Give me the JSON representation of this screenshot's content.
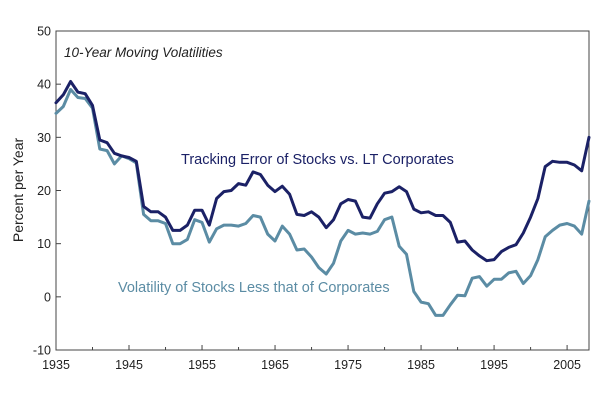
{
  "chart_data": {
    "type": "line",
    "title": "10-Year Moving Volatilities",
    "xlabel": "",
    "ylabel": "Percent per Year",
    "xlim": [
      1935,
      2008
    ],
    "ylim": [
      -10,
      50
    ],
    "grid": false,
    "x_ticks": [
      1935,
      1945,
      1955,
      1965,
      1975,
      1985,
      1995,
      2005
    ],
    "y_ticks": [
      -10,
      0,
      10,
      20,
      30,
      40,
      50
    ],
    "x": [
      1935,
      1936,
      1937,
      1938,
      1939,
      1940,
      1941,
      1942,
      1943,
      1944,
      1945,
      1946,
      1947,
      1948,
      1949,
      1950,
      1951,
      1952,
      1953,
      1954,
      1955,
      1956,
      1957,
      1958,
      1959,
      1960,
      1961,
      1962,
      1963,
      1964,
      1965,
      1966,
      1967,
      1968,
      1969,
      1970,
      1971,
      1972,
      1973,
      1974,
      1975,
      1976,
      1977,
      1978,
      1979,
      1980,
      1981,
      1982,
      1983,
      1984,
      1985,
      1986,
      1987,
      1988,
      1989,
      1990,
      1991,
      1992,
      1993,
      1994,
      1995,
      1996,
      1997,
      1998,
      1999,
      2000,
      2001,
      2002,
      2003,
      2004,
      2005,
      2006,
      2007,
      2008
    ],
    "series": [
      {
        "name": "Tracking Error of Stocks vs. LT Corporates",
        "color": "#1b2166",
        "values": [
          36.5,
          38.0,
          40.5,
          38.5,
          38.2,
          36.0,
          29.5,
          29.0,
          27.0,
          26.5,
          26.2,
          25.5,
          17.0,
          16.0,
          16.0,
          15.0,
          12.5,
          12.5,
          13.5,
          16.3,
          16.3,
          13.5,
          18.5,
          19.8,
          20.0,
          21.3,
          21.0,
          23.5,
          23.0,
          21.0,
          19.8,
          20.8,
          19.3,
          15.5,
          15.3,
          16.0,
          15.0,
          13.0,
          14.5,
          17.5,
          18.3,
          18.0,
          15.0,
          14.8,
          17.5,
          19.5,
          19.8,
          20.7,
          19.8,
          16.5,
          15.8,
          16.0,
          15.3,
          15.3,
          14.0,
          10.3,
          10.5,
          8.8,
          7.7,
          6.8,
          7.0,
          8.5,
          9.3,
          9.8,
          12.0,
          15.0,
          18.5,
          24.5,
          25.5,
          25.3,
          25.3,
          24.8,
          23.7,
          30.0
        ]
      },
      {
        "name": "Volatility of Stocks Less that of Corporates",
        "color": "#5b8ca4",
        "values": [
          34.5,
          35.8,
          39.0,
          37.5,
          37.3,
          35.5,
          27.8,
          27.5,
          25.0,
          26.5,
          26.0,
          25.2,
          15.5,
          14.3,
          14.3,
          13.8,
          10.0,
          10.0,
          10.8,
          14.5,
          14.0,
          10.3,
          12.8,
          13.5,
          13.5,
          13.3,
          13.8,
          15.3,
          15.0,
          11.8,
          10.5,
          13.3,
          11.8,
          8.8,
          9.0,
          7.5,
          5.5,
          4.3,
          6.3,
          10.5,
          12.5,
          11.8,
          12.0,
          11.8,
          12.3,
          14.5,
          15.0,
          9.5,
          8.0,
          1.0,
          -1.0,
          -1.3,
          -3.5,
          -3.5,
          -1.5,
          0.3,
          0.2,
          3.5,
          3.8,
          2.0,
          3.3,
          3.3,
          4.5,
          4.8,
          2.5,
          4.0,
          7.0,
          11.3,
          12.5,
          13.5,
          13.8,
          13.3,
          11.8,
          18.0
        ]
      }
    ],
    "annotations": [
      "Tracking Error  of Stocks vs. LT Corporates",
      "Volatility of Stocks Less that of Corporates"
    ]
  }
}
